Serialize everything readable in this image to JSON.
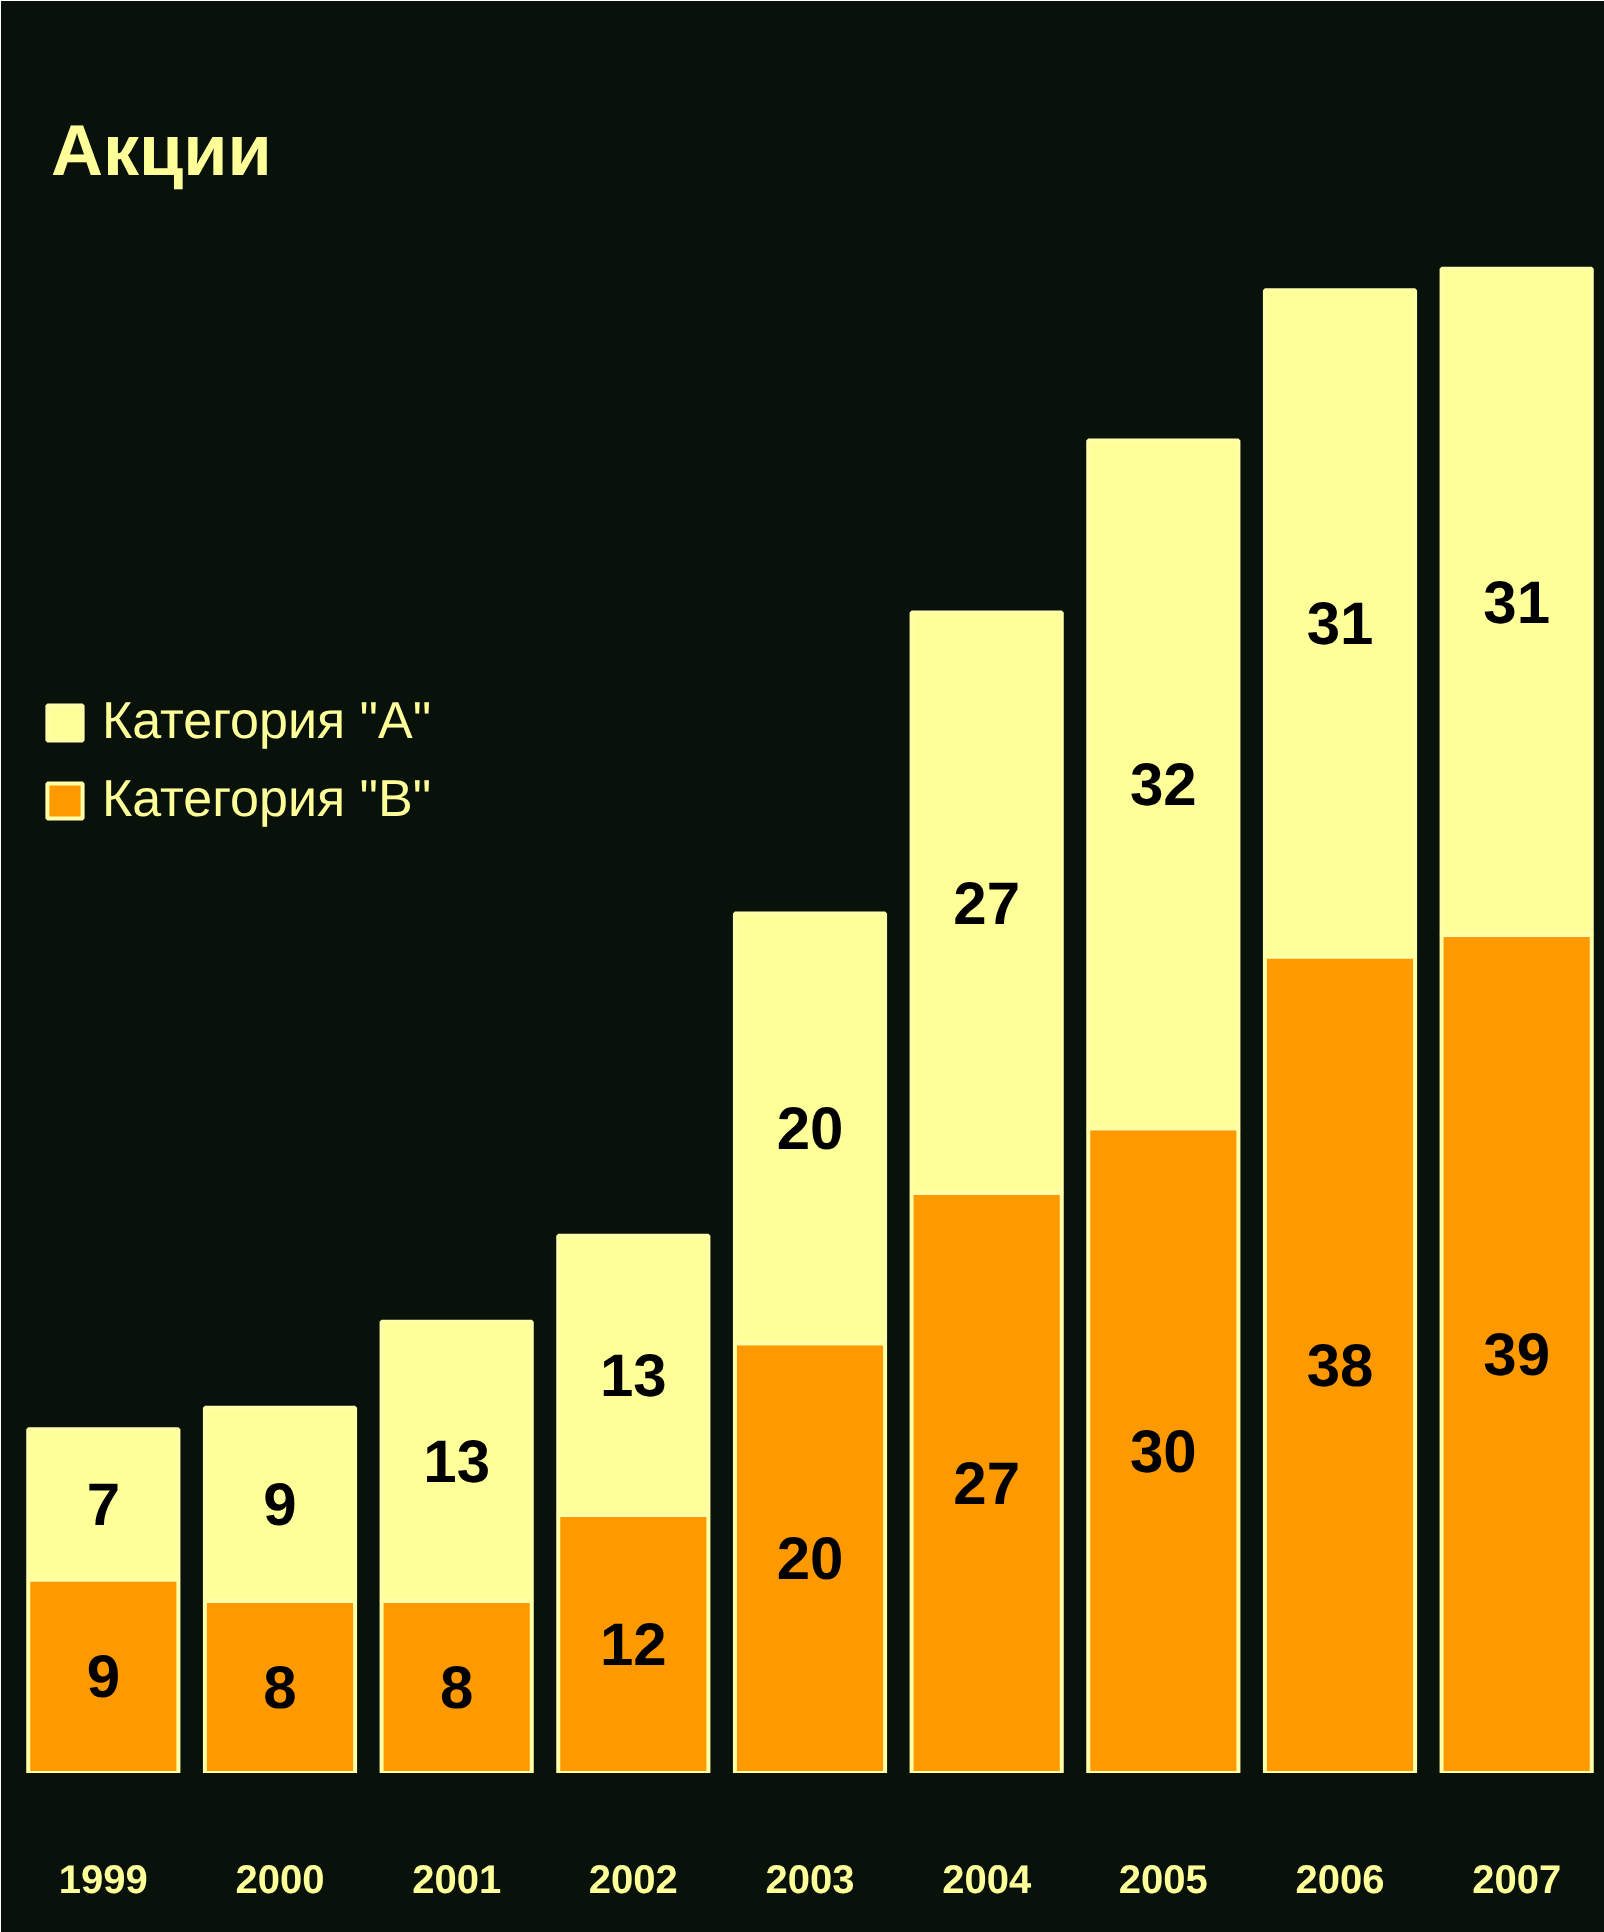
{
  "chart_data": {
    "type": "bar",
    "title": "Акции",
    "stacked": true,
    "data_labels": true,
    "legend": "left",
    "tick_labels": "x",
    "categories": [
      "1999",
      "2000",
      "2001",
      "2002",
      "2003",
      "2004",
      "2005",
      "2006",
      "2007"
    ],
    "series": [
      {
        "name": "Категория \"B\"",
        "color": "#ff9900",
        "values": [
          9,
          8,
          8,
          12,
          20,
          27,
          30,
          38,
          39
        ]
      },
      {
        "name": "Категория \"A\"",
        "color": "#ffff99",
        "values": [
          7,
          9,
          13,
          13,
          20,
          27,
          32,
          31,
          31
        ]
      }
    ]
  }
}
